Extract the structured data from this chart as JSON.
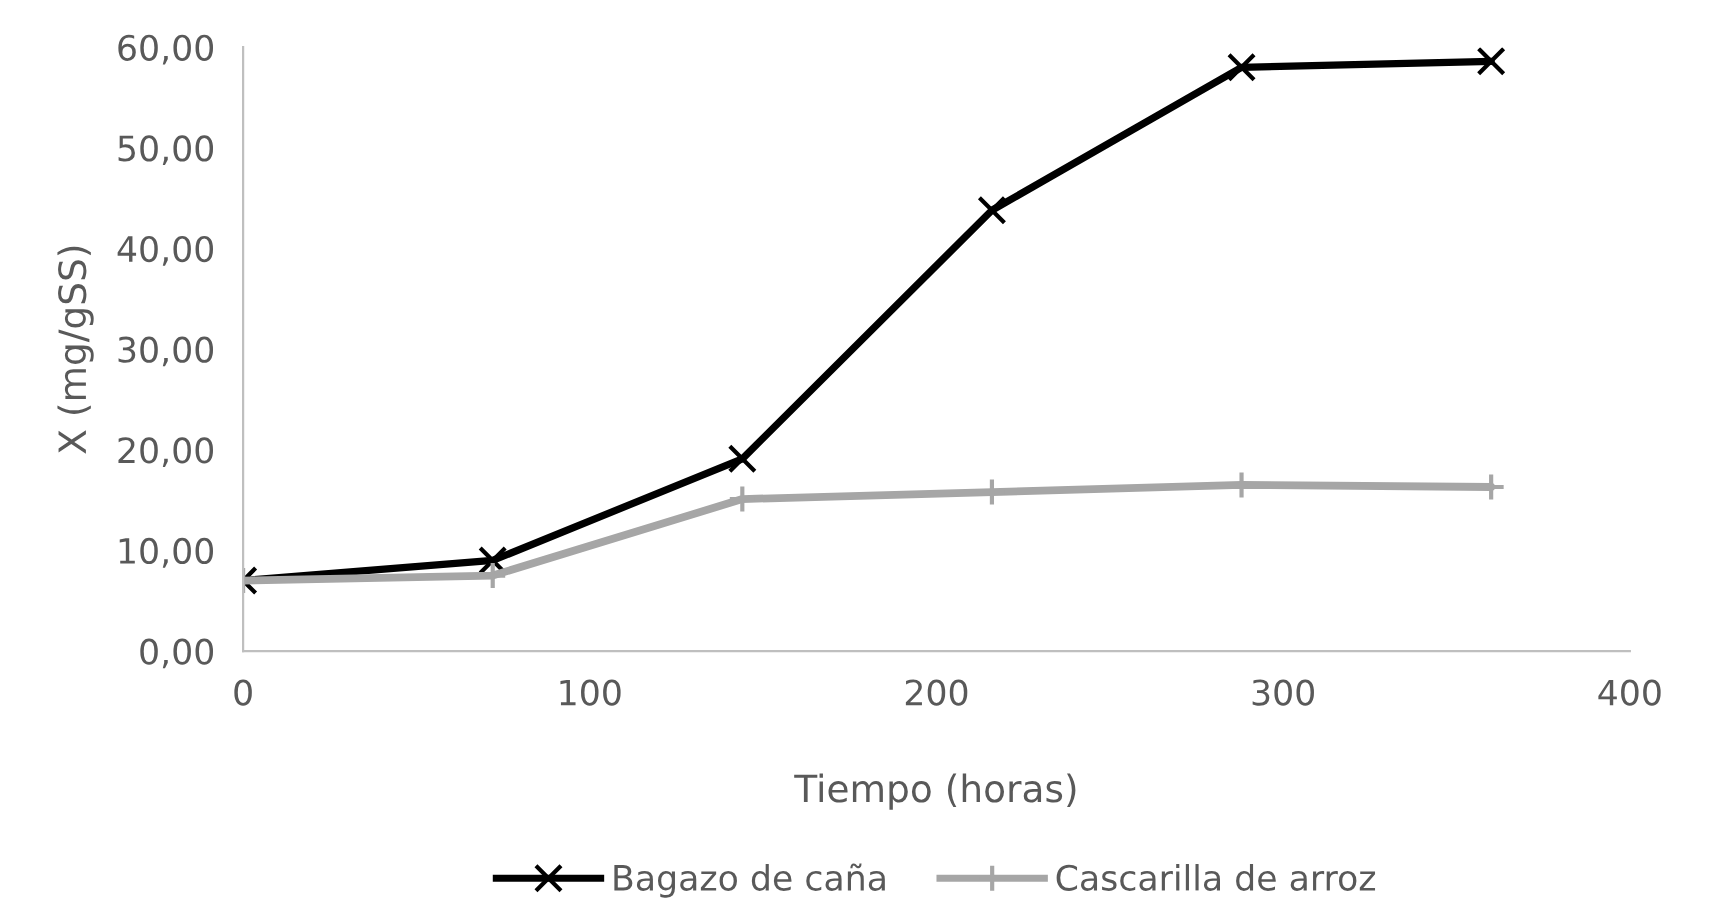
{
  "chart_data": {
    "type": "line",
    "xlabel": "Tiempo (horas)",
    "ylabel": "X (mg/gSS)",
    "x": [
      0,
      72,
      144,
      216,
      288,
      360
    ],
    "series": [
      {
        "name": "Bagazo de caña",
        "color": "#000000",
        "marker": "cross",
        "values": [
          7.0,
          9.0,
          19.1,
          43.8,
          58.0,
          58.6
        ]
      },
      {
        "name": "Cascarilla de arroz",
        "color": "#a6a6a6",
        "marker": "plus",
        "values": [
          7.0,
          7.5,
          15.1,
          15.8,
          16.5,
          16.3
        ]
      }
    ],
    "xlim": [
      0,
      400
    ],
    "xticks": [
      0,
      100,
      200,
      300,
      400
    ],
    "ylim": [
      0,
      60
    ],
    "yticks": [
      {
        "value": 0,
        "label": "0,00"
      },
      {
        "value": 10,
        "label": "10,00"
      },
      {
        "value": 20,
        "label": "20,00"
      },
      {
        "value": 30,
        "label": "30,00"
      },
      {
        "value": 40,
        "label": "40,00"
      },
      {
        "value": 50,
        "label": "50,00"
      },
      {
        "value": 60,
        "label": "60,00"
      }
    ],
    "grid": false,
    "legend": "bottom",
    "line_style": "solid"
  }
}
